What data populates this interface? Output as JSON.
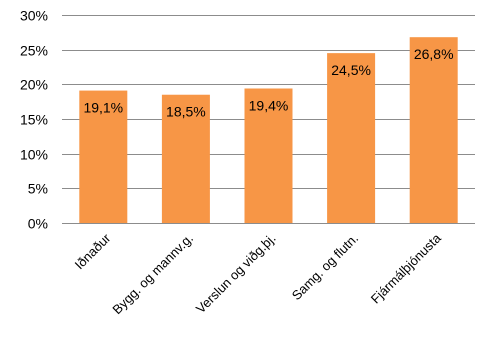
{
  "chart_data": {
    "type": "bar",
    "categories": [
      "Iðnaður",
      "Bygg. og mannv.g.",
      "Verslun og viðg.þj.",
      "Samg. og flutn.",
      "Fjármálþjónusta"
    ],
    "values": [
      19.1,
      18.5,
      19.4,
      24.5,
      26.8
    ],
    "data_labels": [
      "19,1%",
      "18,5%",
      "19,4%",
      "24,5%",
      "26,8%"
    ],
    "ylim": [
      0,
      30
    ],
    "y_ticks": [
      0,
      5,
      10,
      15,
      20,
      25,
      30
    ],
    "y_tick_labels": [
      "0%",
      "5%",
      "10%",
      "15%",
      "20%",
      "25%",
      "30%"
    ],
    "title": "",
    "xlabel": "",
    "ylabel": "",
    "grid": true,
    "legend": "none",
    "bar_color": "#F79646",
    "grid_color": "#8C8C8C"
  }
}
